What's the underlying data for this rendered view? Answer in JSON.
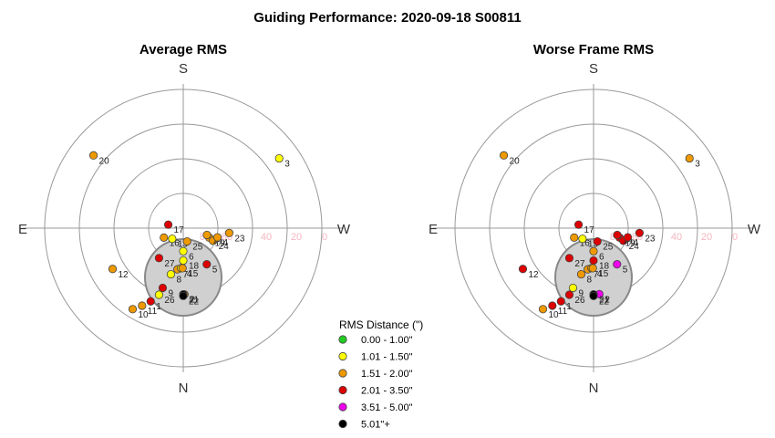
{
  "title": "Guiding Performance: 2020-09-18 S00811",
  "colors": {
    "0.00 - 1.00\"": "#22cc22",
    "1.01 - 1.50\"": "#ffff00",
    "1.51 - 2.00\"": "#ee9900",
    "2.01 - 3.50\"": "#dd0000",
    "3.51 - 5.00\"": "#ee00ee",
    "5.01\"+": "#000000",
    "ring": "#999999",
    "zenith_disc": "#d0d0d0",
    "zenith_disc_edge": "#888888",
    "ring_label": "#f4b6c2"
  },
  "legend": {
    "title": "RMS Distance (\")",
    "items": [
      "0.00 - 1.00\"",
      "1.01 - 1.50\"",
      "1.51 - 2.00\"",
      "2.01 - 3.50\"",
      "3.51 - 5.00\"",
      "5.01\"+"
    ]
  },
  "directions": {
    "top": "S",
    "bottom": "N",
    "left": "E",
    "right": "W"
  },
  "chart_data": [
    {
      "type": "scatter",
      "projection": "polar sky plot (altitude rings, azimuth)",
      "title": "Average RMS",
      "ring_labels": [
        "80",
        "60",
        "40",
        "20",
        "0"
      ],
      "altitude_range": [
        0,
        90
      ],
      "grid": true,
      "points": [
        {
          "id": "2",
          "alt": 47,
          "az": 181,
          "cat": "1.51 - 2.00\""
        },
        {
          "id": "21",
          "alt": 47,
          "az": 180,
          "cat": "5.01\"+"
        },
        {
          "id": "22",
          "alt": 46,
          "az": 180,
          "cat": "5.01\"+"
        },
        {
          "id": "10",
          "alt": 28,
          "az": 148,
          "cat": "1.51 - 2.00\""
        },
        {
          "id": "11",
          "alt": 33,
          "az": 152,
          "cat": "1.51 - 2.00\""
        },
        {
          "id": "1",
          "alt": 38,
          "az": 156,
          "cat": "2.01 - 3.50\""
        },
        {
          "id": "26",
          "alt": 44,
          "az": 160,
          "cat": "1.01 - 1.50\""
        },
        {
          "id": "9",
          "alt": 49,
          "az": 161,
          "cat": "2.01 - 3.50\""
        },
        {
          "id": "8",
          "alt": 59,
          "az": 165,
          "cat": "1.01 - 1.50\""
        },
        {
          "id": "7",
          "alt": 63,
          "az": 172,
          "cat": "1.51 - 2.00\""
        },
        {
          "id": "4",
          "alt": 64,
          "az": 177,
          "cat": "1.01 - 1.50\""
        },
        {
          "id": "15",
          "alt": 64,
          "az": 179,
          "cat": "1.51 - 2.00\""
        },
        {
          "id": "18",
          "alt": 69,
          "az": 180,
          "cat": "1.01 - 1.50\""
        },
        {
          "id": "6",
          "alt": 75,
          "az": 180,
          "cat": "1.01 - 1.50\""
        },
        {
          "id": "12",
          "alt": 37,
          "az": 120,
          "cat": "1.51 - 2.00\""
        },
        {
          "id": "27",
          "alt": 65,
          "az": 141,
          "cat": "2.01 - 3.50\""
        },
        {
          "id": "16",
          "alt": 76,
          "az": 116,
          "cat": "1.51 - 2.00\""
        },
        {
          "id": "13",
          "alt": 80,
          "az": 134,
          "cat": "1.01 - 1.50\""
        },
        {
          "id": "25",
          "alt": 81,
          "az": 196,
          "cat": "1.51 - 2.00\""
        },
        {
          "id": "5",
          "alt": 62,
          "az": 213,
          "cat": "2.01 - 3.50\""
        },
        {
          "id": "19",
          "alt": 72,
          "az": 250,
          "cat": "1.51 - 2.00\""
        },
        {
          "id": "24",
          "alt": 69,
          "az": 247,
          "cat": "1.51 - 2.00\""
        },
        {
          "id": "14",
          "alt": 74,
          "az": 254,
          "cat": "1.51 - 2.00\""
        },
        {
          "id": "4",
          "alt": 67,
          "az": 255,
          "cat": "1.51 - 2.00\""
        },
        {
          "id": "23",
          "alt": 60,
          "az": 264,
          "cat": "1.51 - 2.00\""
        },
        {
          "id": "17",
          "alt": 80,
          "az": 77,
          "cat": "2.01 - 3.50\""
        },
        {
          "id": "20",
          "alt": 15,
          "az": 51,
          "cat": "1.51 - 2.00\""
        },
        {
          "id": "3",
          "alt": 13,
          "az": 306,
          "cat": "1.01 - 1.50\""
        }
      ]
    },
    {
      "type": "scatter",
      "projection": "polar sky plot (altitude rings, azimuth)",
      "title": "Worse Frame RMS",
      "ring_labels": [
        "80",
        "60",
        "40",
        "20",
        "0"
      ],
      "altitude_range": [
        0,
        90
      ],
      "grid": true,
      "points": [
        {
          "id": "2",
          "alt": 47,
          "az": 185,
          "cat": "3.51 - 5.00\""
        },
        {
          "id": "21",
          "alt": 47,
          "az": 180,
          "cat": "5.01\"+"
        },
        {
          "id": "22",
          "alt": 46,
          "az": 180,
          "cat": "5.01\"+"
        },
        {
          "id": "10",
          "alt": 28,
          "az": 148,
          "cat": "1.51 - 2.00\""
        },
        {
          "id": "11",
          "alt": 33,
          "az": 152,
          "cat": "2.01 - 3.50\""
        },
        {
          "id": "1",
          "alt": 38,
          "az": 156,
          "cat": "2.01 - 3.50\""
        },
        {
          "id": "26",
          "alt": 44,
          "az": 160,
          "cat": "2.01 - 3.50\""
        },
        {
          "id": "9",
          "alt": 49,
          "az": 161,
          "cat": "1.01 - 1.50\""
        },
        {
          "id": "8",
          "alt": 59,
          "az": 165,
          "cat": "1.51 - 2.00\""
        },
        {
          "id": "7",
          "alt": 63,
          "az": 172,
          "cat": "1.51 - 2.00\""
        },
        {
          "id": "4",
          "alt": 64,
          "az": 177,
          "cat": "1.51 - 2.00\""
        },
        {
          "id": "15",
          "alt": 64,
          "az": 179,
          "cat": "1.51 - 2.00\""
        },
        {
          "id": "18",
          "alt": 69,
          "az": 180,
          "cat": "2.01 - 3.50\""
        },
        {
          "id": "6",
          "alt": 75,
          "az": 180,
          "cat": "1.51 - 2.00\""
        },
        {
          "id": "12",
          "alt": 37,
          "az": 120,
          "cat": "2.01 - 3.50\""
        },
        {
          "id": "27",
          "alt": 65,
          "az": 141,
          "cat": "2.01 - 3.50\""
        },
        {
          "id": "16",
          "alt": 76,
          "az": 116,
          "cat": "1.51 - 2.00\""
        },
        {
          "id": "13",
          "alt": 80,
          "az": 134,
          "cat": "1.01 - 1.50\""
        },
        {
          "id": "25",
          "alt": 81,
          "az": 196,
          "cat": "2.01 - 3.50\""
        },
        {
          "id": "5",
          "alt": 62,
          "az": 213,
          "cat": "3.51 - 5.00\""
        },
        {
          "id": "19",
          "alt": 72,
          "az": 250,
          "cat": "2.01 - 3.50\""
        },
        {
          "id": "24",
          "alt": 69,
          "az": 247,
          "cat": "2.01 - 3.50\""
        },
        {
          "id": "14",
          "alt": 74,
          "az": 254,
          "cat": "2.01 - 3.50\""
        },
        {
          "id": "4",
          "alt": 67,
          "az": 255,
          "cat": "2.01 - 3.50\""
        },
        {
          "id": "23",
          "alt": 60,
          "az": 264,
          "cat": "2.01 - 3.50\""
        },
        {
          "id": "17",
          "alt": 80,
          "az": 77,
          "cat": "2.01 - 3.50\""
        },
        {
          "id": "20",
          "alt": 15,
          "az": 51,
          "cat": "1.51 - 2.00\""
        },
        {
          "id": "3",
          "alt": 13,
          "az": 306,
          "cat": "1.51 - 2.00\""
        }
      ]
    }
  ]
}
